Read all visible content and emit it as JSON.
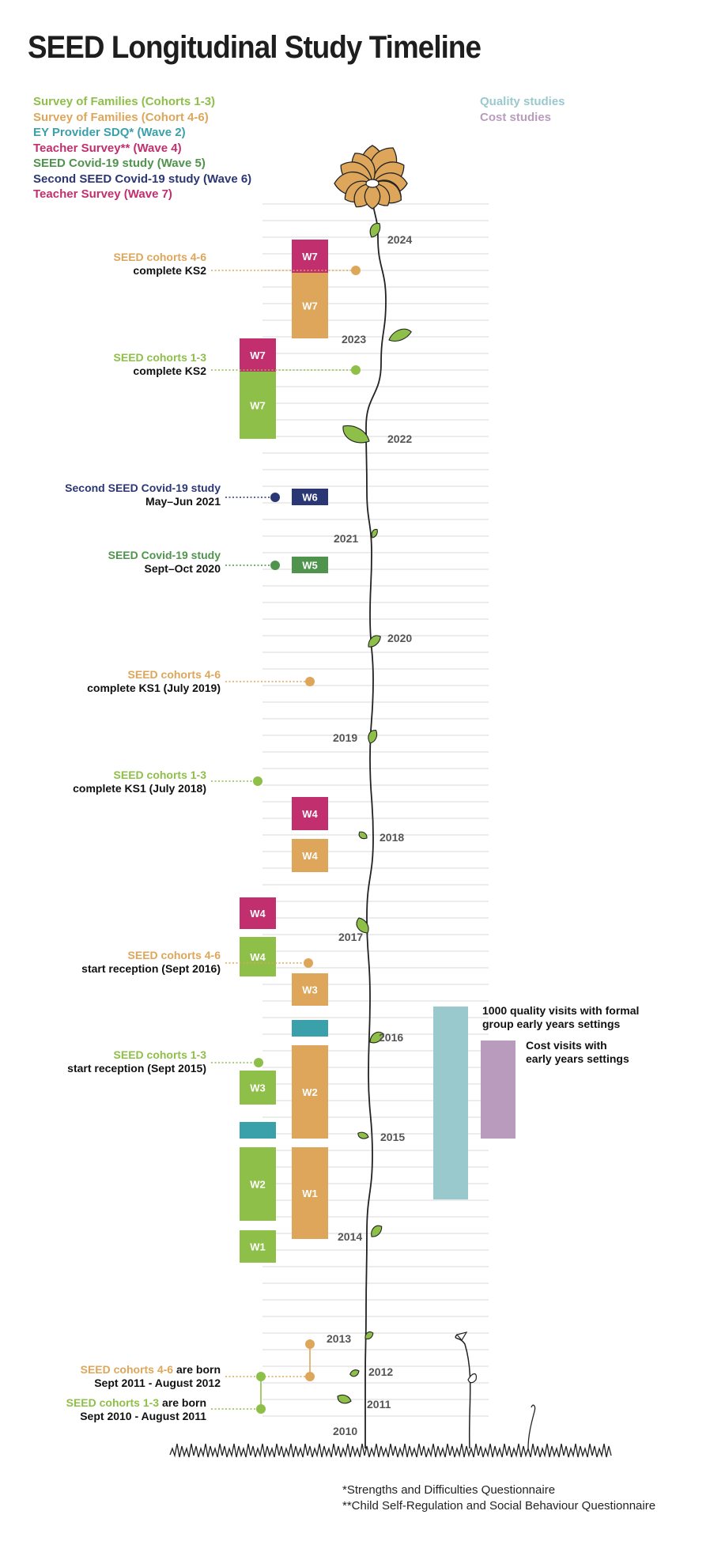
{
  "title": "SEED Longitudinal Study Timeline",
  "colors": {
    "families_1_3": "#8ebf48",
    "families_4_6": "#dea65a",
    "ey_provider": "#3aa0aa",
    "teacher": "#c12f6f",
    "covid5": "#4f944d",
    "covid6": "#2b3675",
    "quality": "#99c9cd",
    "cost": "#b99cbd",
    "year_label": "#555555",
    "leaf": "#8ebf48",
    "petal": "#dea65a"
  },
  "legend_left": [
    {
      "label": "Survey of Families (Cohorts 1-3)",
      "color": "#8ebf48"
    },
    {
      "label": "Survey of Families (Cohort 4-6)",
      "color": "#dea65a"
    },
    {
      "label": "EY Provider SDQ* (Wave 2)",
      "color": "#3aa0aa"
    },
    {
      "label": "Teacher Survey** (Wave 4)",
      "color": "#c12f6f"
    },
    {
      "label": "SEED Covid-19 study (Wave 5)",
      "color": "#4f944d"
    },
    {
      "label": "Second SEED Covid-19 study (Wave 6)",
      "color": "#2b3675"
    },
    {
      "label": "Teacher Survey (Wave 7)",
      "color": "#c12f6f"
    }
  ],
  "legend_right": [
    {
      "label": "Quality studies",
      "color": "#99c9cd"
    },
    {
      "label": "Cost studies",
      "color": "#b99cbd"
    }
  ],
  "years": [
    "2010",
    "2011",
    "2012",
    "2013",
    "2014",
    "2015",
    "2016",
    "2017",
    "2018",
    "2019",
    "2020",
    "2021",
    "2022",
    "2023",
    "2024"
  ],
  "milestones": [
    {
      "line1": "SEED cohorts 4-6",
      "line2": "complete KS2",
      "color": "#dea65a"
    },
    {
      "line1": "SEED cohorts 1-3",
      "line2": "complete KS2",
      "color": "#8ebf48"
    },
    {
      "line1": "Second SEED Covid-19 study",
      "line2": "May–Jun 2021",
      "color": "#2b3675"
    },
    {
      "line1": "SEED Covid-19 study",
      "line2": "Sept–Oct 2020",
      "color": "#4f944d"
    },
    {
      "line1": "SEED cohorts 4-6",
      "line2": "complete KS1 (July 2019)",
      "color": "#dea65a"
    },
    {
      "line1": "SEED cohorts 1-3",
      "line2": "complete KS1 (July 2018)",
      "color": "#8ebf48"
    },
    {
      "line1": "SEED cohorts 4-6",
      "line2": "start reception (Sept 2016)",
      "color": "#dea65a"
    },
    {
      "line1": "SEED cohorts 1-3",
      "line2": "start reception (Sept 2015)",
      "color": "#8ebf48"
    }
  ],
  "births": [
    {
      "colored": "SEED cohorts 4-6",
      "plain": " are born",
      "line2": "Sept 2011 - August 2012",
      "color": "#dea65a"
    },
    {
      "colored": "SEED cohorts 1-3",
      "plain": " are born",
      "line2": "Sept 2010 - August 2011",
      "color": "#8ebf48"
    }
  ],
  "waves": [
    {
      "label": "W7",
      "color": "#c12f6f"
    },
    {
      "label": "W7",
      "color": "#dea65a"
    },
    {
      "label": "W7",
      "color": "#c12f6f"
    },
    {
      "label": "W7",
      "color": "#8ebf48"
    },
    {
      "label": "W6",
      "color": "#2b3675"
    },
    {
      "label": "W5",
      "color": "#4f944d"
    },
    {
      "label": "W4",
      "color": "#c12f6f"
    },
    {
      "label": "W4",
      "color": "#dea65a"
    },
    {
      "label": "W4",
      "color": "#c12f6f"
    },
    {
      "label": "W4",
      "color": "#8ebf48"
    },
    {
      "label": "W3",
      "color": "#dea65a"
    },
    {
      "label": "",
      "color": "#3aa0aa"
    },
    {
      "label": "W2",
      "color": "#dea65a"
    },
    {
      "label": "W3",
      "color": "#8ebf48"
    },
    {
      "label": "",
      "color": "#3aa0aa"
    },
    {
      "label": "W1",
      "color": "#dea65a"
    },
    {
      "label": "W2",
      "color": "#8ebf48"
    },
    {
      "label": "W1",
      "color": "#8ebf48"
    }
  ],
  "studies": [
    {
      "line1": "1000 quality visits with formal",
      "line2": "group early years settings",
      "color": "#99c9cd"
    },
    {
      "line1": "Cost visits with",
      "line2": "early years settings",
      "color": "#b99cbd"
    }
  ],
  "footnotes": [
    "*Strengths and Difficulties Questionnaire",
    "**Child Self-Regulation and Social Behaviour Questionnaire"
  ]
}
